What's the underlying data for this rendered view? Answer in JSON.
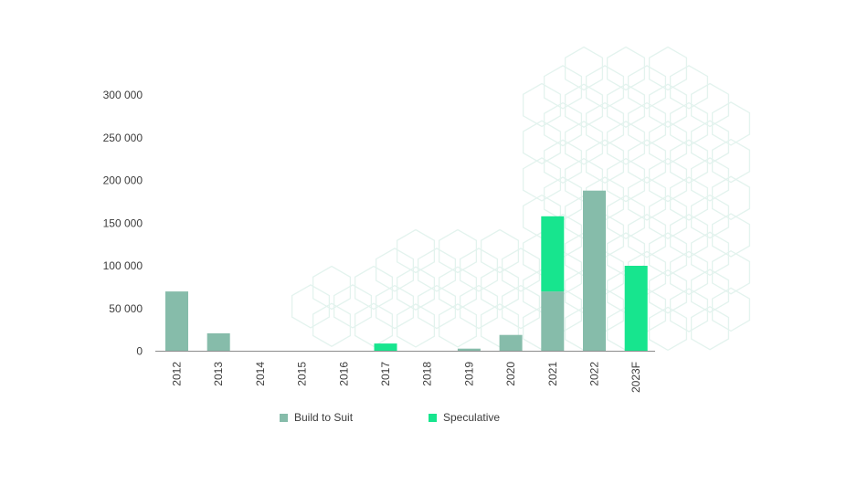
{
  "chart_data": {
    "type": "bar",
    "stacked": true,
    "categories": [
      "2012",
      "2013",
      "2014",
      "2015",
      "2016",
      "2017",
      "2018",
      "2019",
      "2020",
      "2021",
      "2022",
      "2023F"
    ],
    "series": [
      {
        "name": "Build to Suit",
        "color": "#86bcaa",
        "values": [
          70000,
          21000,
          0,
          0,
          0,
          0,
          0,
          3000,
          19000,
          70000,
          188000,
          0
        ]
      },
      {
        "name": "Speculative",
        "color": "#17e58e",
        "values": [
          0,
          0,
          0,
          0,
          0,
          9000,
          0,
          0,
          0,
          88000,
          0,
          100000
        ]
      }
    ],
    "y_ticks": [
      0,
      50000,
      100000,
      150000,
      200000,
      250000,
      300000
    ],
    "y_tick_labels": [
      "0",
      "50 000",
      "100 000",
      "150 000",
      "200 000",
      "250 000",
      "300 000"
    ],
    "ylim": [
      0,
      300000
    ],
    "x_tick_rotation": "vertical",
    "grid": false,
    "legend_position": "bottom",
    "title": "",
    "xlabel": "",
    "ylabel": "",
    "background_pattern": "hexagon-outline",
    "pattern_color": "#e3f3ee"
  }
}
